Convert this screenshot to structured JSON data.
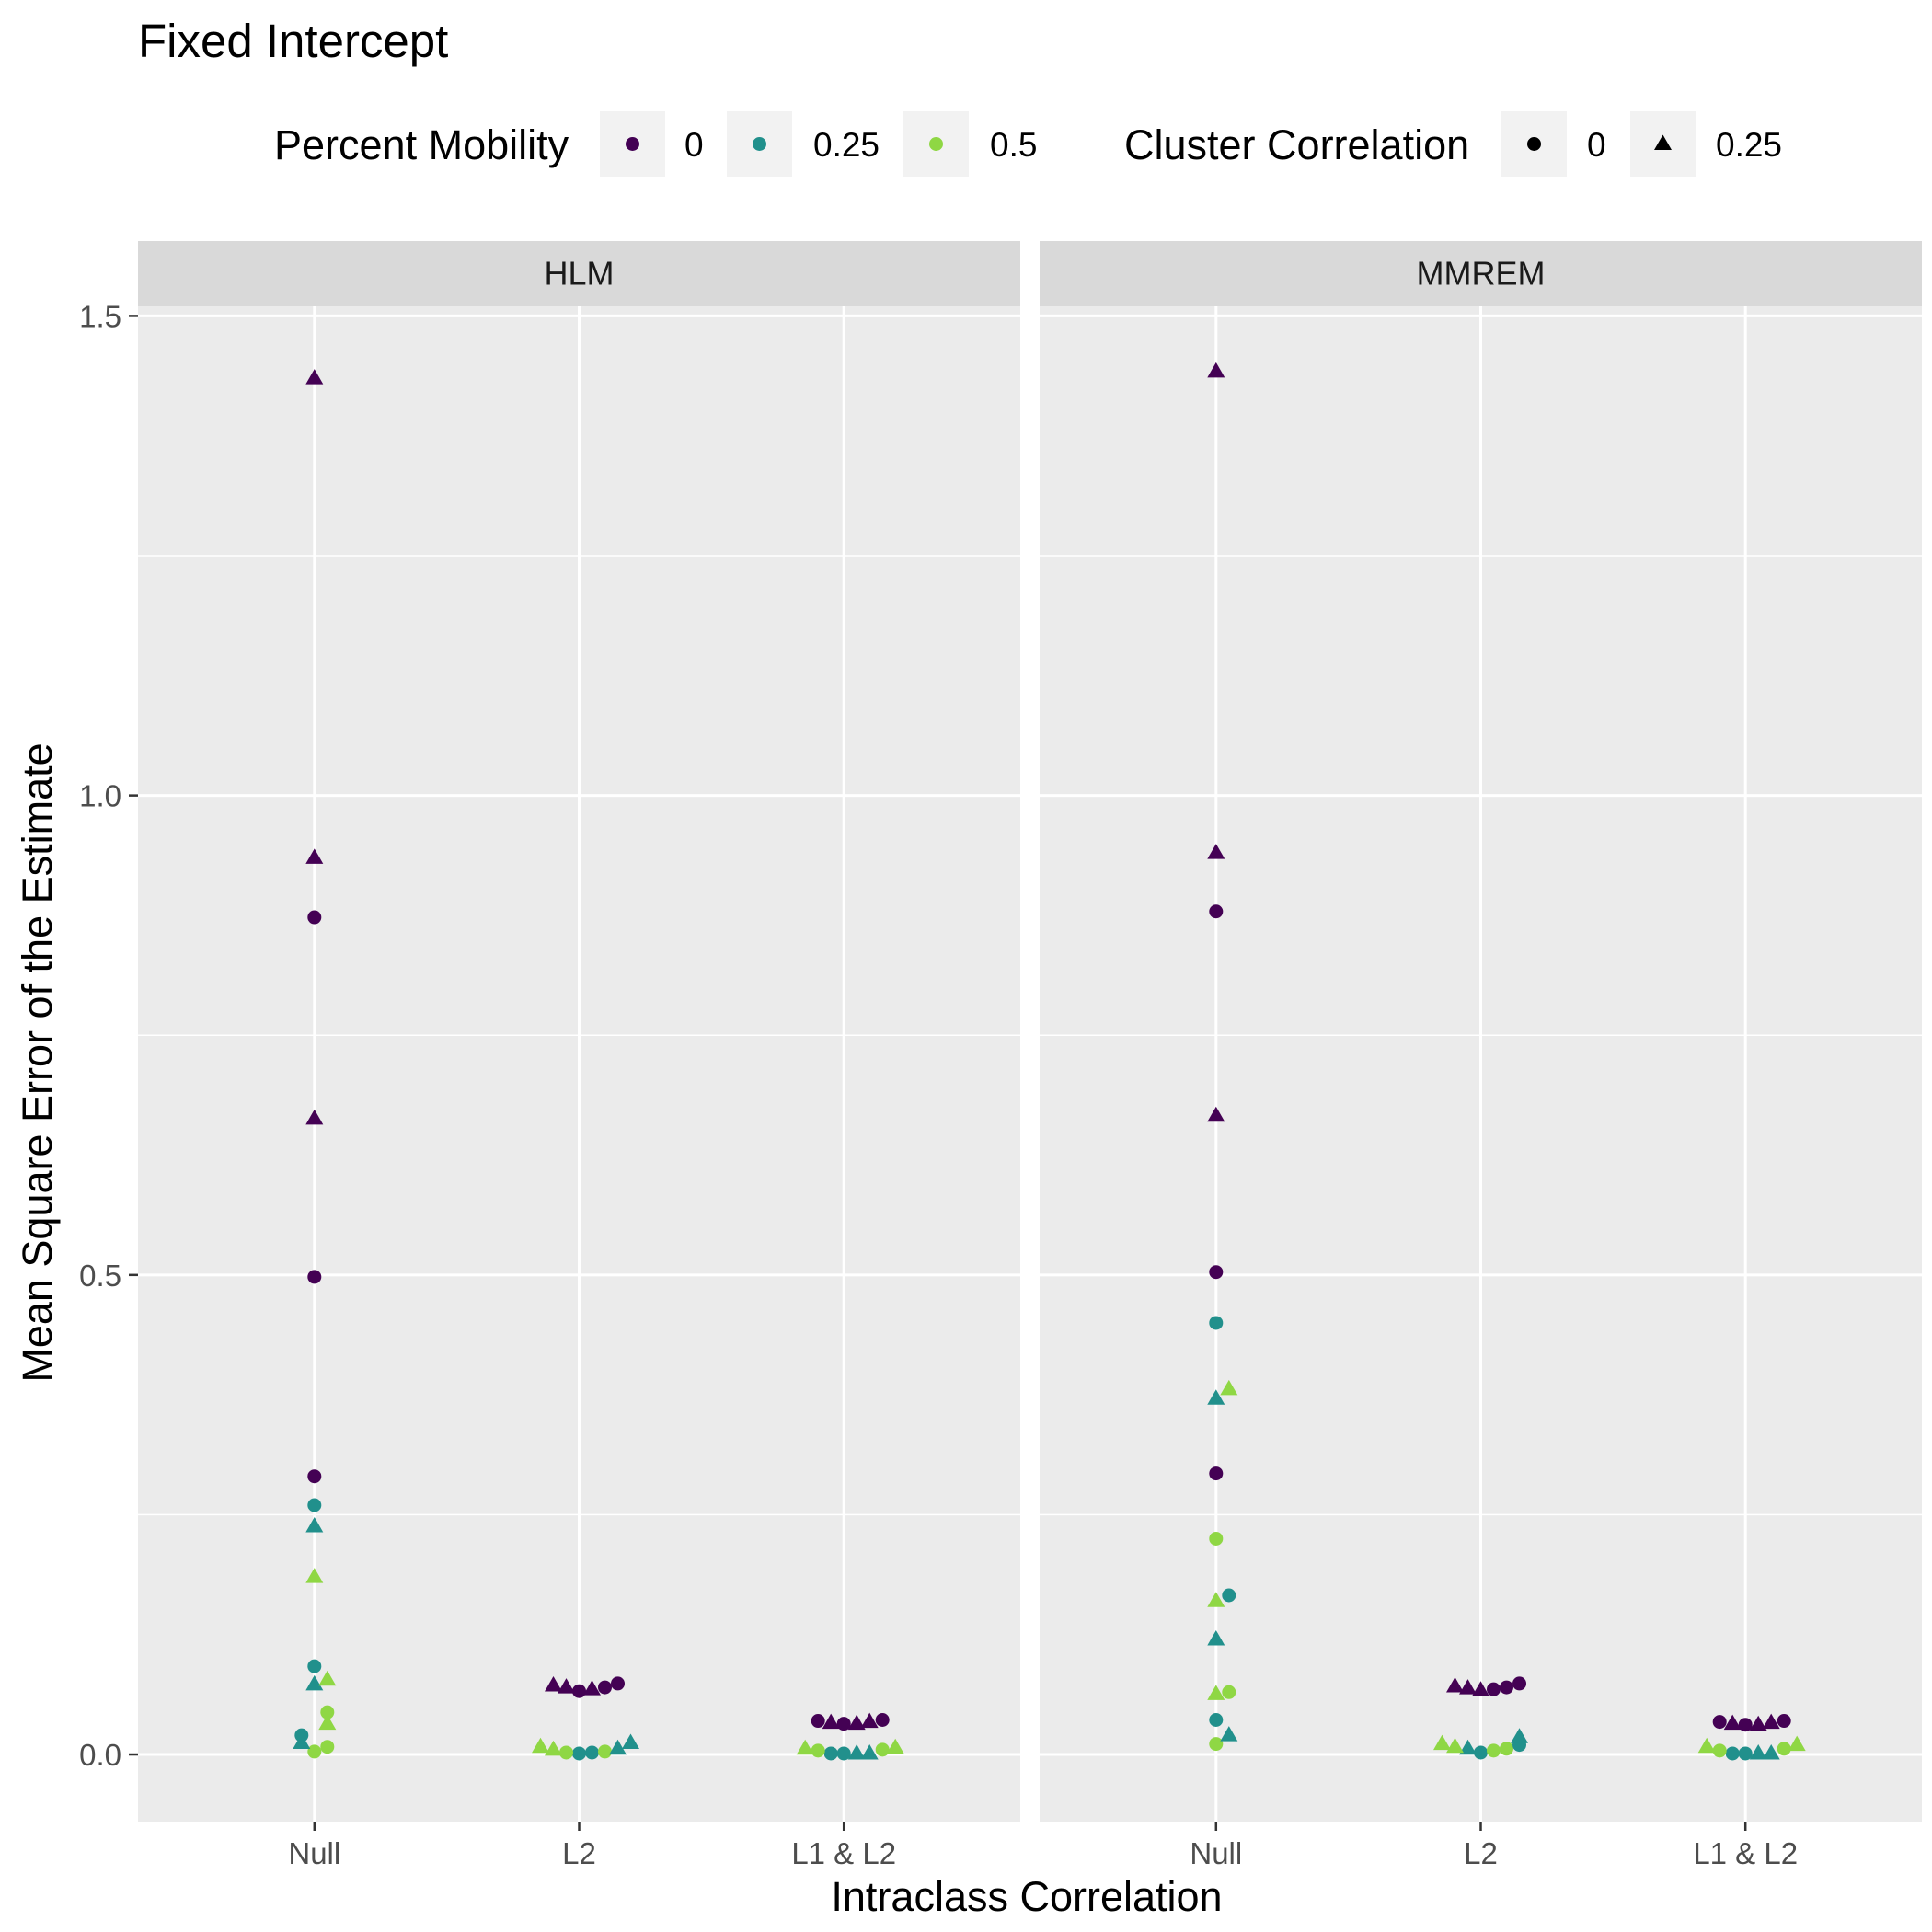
{
  "title": "Fixed Intercept",
  "legend": {
    "mobility": {
      "title": "Percent Mobility",
      "items": [
        {
          "label": "0",
          "color": "#440154"
        },
        {
          "label": "0.25",
          "color": "#21908C"
        },
        {
          "label": "0.5",
          "color": "#8FD744"
        }
      ]
    },
    "correlation": {
      "title": "Cluster Correlation",
      "items": [
        {
          "label": "0",
          "shape": "circle"
        },
        {
          "label": "0.25",
          "shape": "triangle"
        }
      ]
    }
  },
  "chart_data": {
    "type": "scatter",
    "title": "Fixed Intercept",
    "xlabel": "Intraclass Correlation",
    "ylabel": "Mean Square Error of the Estimate",
    "categories": [
      "Null",
      "L2",
      "L1 & L2"
    ],
    "ylim": [
      -0.07,
      1.51
    ],
    "yticks": [
      0.0,
      0.5,
      1.0,
      1.5
    ],
    "ytick_labels": [
      "0.0",
      "0.5",
      "1.0",
      "1.5"
    ],
    "grid": true,
    "legend_position": "top",
    "panels": [
      {
        "name": "HLM",
        "points": [
          {
            "x": "Null",
            "y": 1.435,
            "mobility": "0",
            "correlation": "0.25"
          },
          {
            "x": "Null",
            "y": 0.935,
            "mobility": "0",
            "correlation": "0.25"
          },
          {
            "x": "Null",
            "y": 0.873,
            "mobility": "0",
            "correlation": "0"
          },
          {
            "x": "Null",
            "y": 0.663,
            "mobility": "0",
            "correlation": "0.25"
          },
          {
            "x": "Null",
            "y": 0.498,
            "mobility": "0",
            "correlation": "0"
          },
          {
            "x": "Null",
            "y": 0.29,
            "mobility": "0",
            "correlation": "0"
          },
          {
            "x": "Null",
            "y": 0.26,
            "mobility": "0.25",
            "correlation": "0"
          },
          {
            "x": "Null",
            "y": 0.238,
            "mobility": "0.25",
            "correlation": "0.25"
          },
          {
            "x": "Null",
            "y": 0.185,
            "mobility": "0.5",
            "correlation": "0.25"
          },
          {
            "x": "Null",
            "y": 0.092,
            "mobility": "0.25",
            "correlation": "0"
          },
          {
            "x": "Null",
            "y": 0.078,
            "mobility": "0.5",
            "correlation": "0.25"
          },
          {
            "x": "Null",
            "y": 0.073,
            "mobility": "0.25",
            "correlation": "0.25"
          },
          {
            "x": "Null",
            "y": 0.044,
            "mobility": "0.5",
            "correlation": "0"
          },
          {
            "x": "Null",
            "y": 0.032,
            "mobility": "0.5",
            "correlation": "0.25"
          },
          {
            "x": "Null",
            "y": 0.02,
            "mobility": "0.25",
            "correlation": "0"
          },
          {
            "x": "Null",
            "y": 0.012,
            "mobility": "0.25",
            "correlation": "0.25"
          },
          {
            "x": "Null",
            "y": 0.008,
            "mobility": "0.5",
            "correlation": "0"
          },
          {
            "x": "Null",
            "y": 0.003,
            "mobility": "0.5",
            "correlation": "0"
          },
          {
            "x": "L2",
            "y": 0.072,
            "mobility": "0",
            "correlation": "0.25"
          },
          {
            "x": "L2",
            "y": 0.07,
            "mobility": "0",
            "correlation": "0.25"
          },
          {
            "x": "L2",
            "y": 0.068,
            "mobility": "0",
            "correlation": "0.25"
          },
          {
            "x": "L2",
            "y": 0.074,
            "mobility": "0",
            "correlation": "0"
          },
          {
            "x": "L2",
            "y": 0.07,
            "mobility": "0",
            "correlation": "0"
          },
          {
            "x": "L2",
            "y": 0.066,
            "mobility": "0",
            "correlation": "0"
          },
          {
            "x": "L2",
            "y": 0.012,
            "mobility": "0.25",
            "correlation": "0.25"
          },
          {
            "x": "L2",
            "y": 0.006,
            "mobility": "0.25",
            "correlation": "0.25"
          },
          {
            "x": "L2",
            "y": 0.002,
            "mobility": "0.25",
            "correlation": "0"
          },
          {
            "x": "L2",
            "y": 0.001,
            "mobility": "0.25",
            "correlation": "0"
          },
          {
            "x": "L2",
            "y": 0.008,
            "mobility": "0.5",
            "correlation": "0.25"
          },
          {
            "x": "L2",
            "y": 0.005,
            "mobility": "0.5",
            "correlation": "0.25"
          },
          {
            "x": "L2",
            "y": 0.003,
            "mobility": "0.5",
            "correlation": "0"
          },
          {
            "x": "L2",
            "y": 0.002,
            "mobility": "0.5",
            "correlation": "0"
          },
          {
            "x": "L1 & L2",
            "y": 0.036,
            "mobility": "0",
            "correlation": "0"
          },
          {
            "x": "L1 & L2",
            "y": 0.035,
            "mobility": "0",
            "correlation": "0"
          },
          {
            "x": "L1 & L2",
            "y": 0.034,
            "mobility": "0",
            "correlation": "0.25"
          },
          {
            "x": "L1 & L2",
            "y": 0.033,
            "mobility": "0",
            "correlation": "0.25"
          },
          {
            "x": "L1 & L2",
            "y": 0.032,
            "mobility": "0",
            "correlation": "0"
          },
          {
            "x": "L1 & L2",
            "y": 0.032,
            "mobility": "0",
            "correlation": "0.25"
          },
          {
            "x": "L1 & L2",
            "y": 0.001,
            "mobility": "0.25",
            "correlation": "0"
          },
          {
            "x": "L1 & L2",
            "y": 0.001,
            "mobility": "0.25",
            "correlation": "0.25"
          },
          {
            "x": "L1 & L2",
            "y": 0.001,
            "mobility": "0.25",
            "correlation": "0"
          },
          {
            "x": "L1 & L2",
            "y": 0.001,
            "mobility": "0.25",
            "correlation": "0.25"
          },
          {
            "x": "L1 & L2",
            "y": 0.007,
            "mobility": "0.5",
            "correlation": "0.25"
          },
          {
            "x": "L1 & L2",
            "y": 0.006,
            "mobility": "0.5",
            "correlation": "0.25"
          },
          {
            "x": "L1 & L2",
            "y": 0.005,
            "mobility": "0.5",
            "correlation": "0"
          },
          {
            "x": "L1 & L2",
            "y": 0.004,
            "mobility": "0.5",
            "correlation": "0"
          }
        ]
      },
      {
        "name": "MMREM",
        "points": [
          {
            "x": "Null",
            "y": 1.442,
            "mobility": "0",
            "correlation": "0.25"
          },
          {
            "x": "Null",
            "y": 0.94,
            "mobility": "0",
            "correlation": "0.25"
          },
          {
            "x": "Null",
            "y": 0.879,
            "mobility": "0",
            "correlation": "0"
          },
          {
            "x": "Null",
            "y": 0.666,
            "mobility": "0",
            "correlation": "0.25"
          },
          {
            "x": "Null",
            "y": 0.503,
            "mobility": "0",
            "correlation": "0"
          },
          {
            "x": "Null",
            "y": 0.45,
            "mobility": "0.25",
            "correlation": "0"
          },
          {
            "x": "Null",
            "y": 0.381,
            "mobility": "0.5",
            "correlation": "0.25"
          },
          {
            "x": "Null",
            "y": 0.371,
            "mobility": "0.25",
            "correlation": "0.25"
          },
          {
            "x": "Null",
            "y": 0.293,
            "mobility": "0",
            "correlation": "0"
          },
          {
            "x": "Null",
            "y": 0.225,
            "mobility": "0.5",
            "correlation": "0"
          },
          {
            "x": "Null",
            "y": 0.166,
            "mobility": "0.25",
            "correlation": "0"
          },
          {
            "x": "Null",
            "y": 0.16,
            "mobility": "0.5",
            "correlation": "0.25"
          },
          {
            "x": "Null",
            "y": 0.12,
            "mobility": "0.25",
            "correlation": "0.25"
          },
          {
            "x": "Null",
            "y": 0.065,
            "mobility": "0.5",
            "correlation": "0"
          },
          {
            "x": "Null",
            "y": 0.063,
            "mobility": "0.5",
            "correlation": "0.25"
          },
          {
            "x": "Null",
            "y": 0.036,
            "mobility": "0.25",
            "correlation": "0"
          },
          {
            "x": "Null",
            "y": 0.02,
            "mobility": "0.25",
            "correlation": "0.25"
          },
          {
            "x": "Null",
            "y": 0.011,
            "mobility": "0.5",
            "correlation": "0"
          },
          {
            "x": "L2",
            "y": 0.074,
            "mobility": "0",
            "correlation": "0"
          },
          {
            "x": "L2",
            "y": 0.071,
            "mobility": "0",
            "correlation": "0.25"
          },
          {
            "x": "L2",
            "y": 0.07,
            "mobility": "0",
            "correlation": "0"
          },
          {
            "x": "L2",
            "y": 0.069,
            "mobility": "0",
            "correlation": "0.25"
          },
          {
            "x": "L2",
            "y": 0.068,
            "mobility": "0",
            "correlation": "0"
          },
          {
            "x": "L2",
            "y": 0.067,
            "mobility": "0",
            "correlation": "0.25"
          },
          {
            "x": "L2",
            "y": 0.018,
            "mobility": "0.25",
            "correlation": "0.25"
          },
          {
            "x": "L2",
            "y": 0.01,
            "mobility": "0.25",
            "correlation": "0"
          },
          {
            "x": "L2",
            "y": 0.006,
            "mobility": "0.25",
            "correlation": "0.25"
          },
          {
            "x": "L2",
            "y": 0.002,
            "mobility": "0.25",
            "correlation": "0"
          },
          {
            "x": "L2",
            "y": 0.011,
            "mobility": "0.5",
            "correlation": "0.25"
          },
          {
            "x": "L2",
            "y": 0.008,
            "mobility": "0.5",
            "correlation": "0.25"
          },
          {
            "x": "L2",
            "y": 0.006,
            "mobility": "0.5",
            "correlation": "0"
          },
          {
            "x": "L2",
            "y": 0.004,
            "mobility": "0.5",
            "correlation": "0"
          },
          {
            "x": "L1 & L2",
            "y": 0.035,
            "mobility": "0",
            "correlation": "0"
          },
          {
            "x": "L1 & L2",
            "y": 0.034,
            "mobility": "0",
            "correlation": "0"
          },
          {
            "x": "L1 & L2",
            "y": 0.033,
            "mobility": "0",
            "correlation": "0.25"
          },
          {
            "x": "L1 & L2",
            "y": 0.032,
            "mobility": "0",
            "correlation": "0.25"
          },
          {
            "x": "L1 & L2",
            "y": 0.031,
            "mobility": "0",
            "correlation": "0"
          },
          {
            "x": "L1 & L2",
            "y": 0.031,
            "mobility": "0",
            "correlation": "0.25"
          },
          {
            "x": "L1 & L2",
            "y": 0.001,
            "mobility": "0.25",
            "correlation": "0"
          },
          {
            "x": "L1 & L2",
            "y": 0.001,
            "mobility": "0.25",
            "correlation": "0.25"
          },
          {
            "x": "L1 & L2",
            "y": 0.001,
            "mobility": "0.25",
            "correlation": "0"
          },
          {
            "x": "L1 & L2",
            "y": 0.001,
            "mobility": "0.25",
            "correlation": "0.25"
          },
          {
            "x": "L1 & L2",
            "y": 0.01,
            "mobility": "0.5",
            "correlation": "0.25"
          },
          {
            "x": "L1 & L2",
            "y": 0.008,
            "mobility": "0.5",
            "correlation": "0.25"
          },
          {
            "x": "L1 & L2",
            "y": 0.006,
            "mobility": "0.5",
            "correlation": "0"
          },
          {
            "x": "L1 & L2",
            "y": 0.004,
            "mobility": "0.5",
            "correlation": "0"
          }
        ]
      }
    ]
  }
}
